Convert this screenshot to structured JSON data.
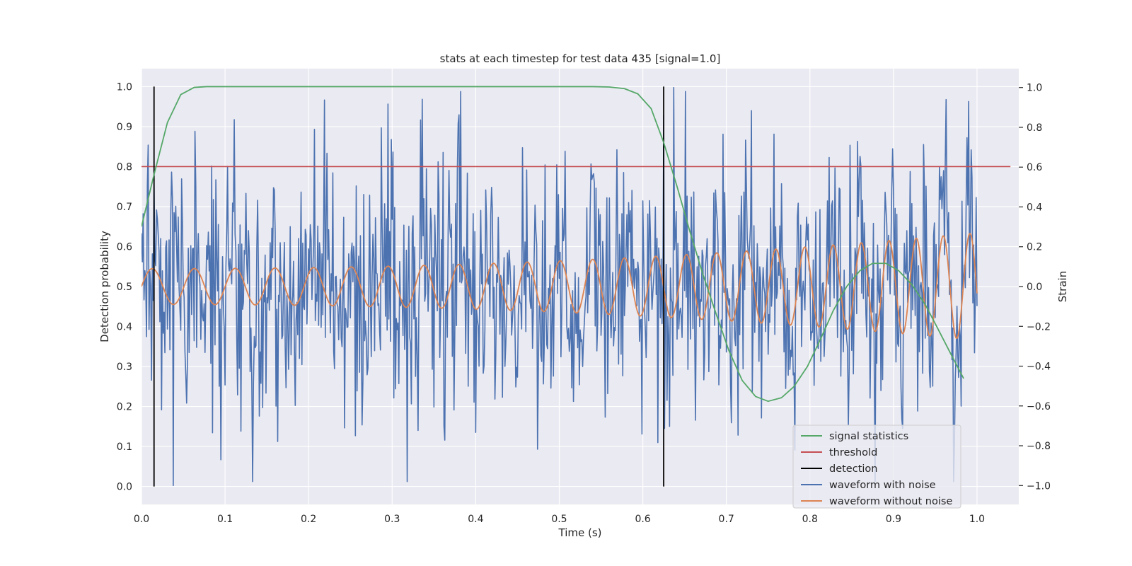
{
  "chart_data": {
    "type": "line",
    "title": "stats at each timestep for test data 435 [signal=1.0]",
    "xlabel": "Time (s)",
    "ylabel": "Detection probability",
    "ylabel_right": "Strain",
    "xlim": [
      0.0,
      1.05
    ],
    "ylim": [
      -0.045,
      1.045
    ],
    "ylim_right": [
      -1.095,
      1.095
    ],
    "x_ticks": [
      "0.0",
      "0.1",
      "0.2",
      "0.3",
      "0.4",
      "0.5",
      "0.6",
      "0.7",
      "0.8",
      "0.9",
      "1.0"
    ],
    "y_ticks": [
      "0.0",
      "0.1",
      "0.2",
      "0.3",
      "0.4",
      "0.5",
      "0.6",
      "0.7",
      "0.8",
      "0.9",
      "1.0"
    ],
    "y_ticks_right": [
      "−1.0",
      "−0.8",
      "−0.6",
      "−0.4",
      "−0.2",
      "0.0",
      "0.2",
      "0.4",
      "0.6",
      "0.8",
      "1.0"
    ],
    "grid": true,
    "legend_position": "bottom-right",
    "colors": {
      "signal_statistics": "#55a868",
      "threshold": "#c44e52",
      "detection": "#000000",
      "waveform_with_noise": "#4c72b0",
      "waveform_without_noise": "#dd8452",
      "plot_background": "#eaeaf2",
      "grid": "#ffffff"
    },
    "series": [
      {
        "name": "signal statistics",
        "axis": "left",
        "x": [
          0.0,
          0.015,
          0.031,
          0.047,
          0.063,
          0.078,
          0.094,
          0.11,
          0.2,
          0.3,
          0.4,
          0.5,
          0.54,
          0.56,
          0.578,
          0.594,
          0.61,
          0.625,
          0.641,
          0.656,
          0.672,
          0.688,
          0.703,
          0.719,
          0.735,
          0.75,
          0.766,
          0.781,
          0.797,
          0.813,
          0.828,
          0.844,
          0.86,
          0.875,
          0.891,
          0.906,
          0.922,
          0.938,
          0.953,
          0.969,
          0.984
        ],
        "values": [
          0.65,
          0.78,
          0.91,
          0.98,
          0.998,
          1.0,
          1.0,
          1.0,
          1.0,
          1.0,
          1.0,
          1.0,
          1.0,
          0.999,
          0.995,
          0.982,
          0.945,
          0.86,
          0.75,
          0.64,
          0.53,
          0.43,
          0.34,
          0.265,
          0.225,
          0.213,
          0.222,
          0.25,
          0.3,
          0.37,
          0.44,
          0.5,
          0.54,
          0.558,
          0.558,
          0.54,
          0.505,
          0.455,
          0.395,
          0.33,
          0.27
        ]
      },
      {
        "name": "threshold",
        "axis": "left",
        "x": [
          0.0,
          1.04
        ],
        "values": [
          0.8,
          0.8
        ]
      },
      {
        "name": "detection",
        "axis": "left",
        "segments": [
          {
            "x": 0.015,
            "y": [
              0.0,
              1.0
            ]
          },
          {
            "x": 0.625,
            "y": [
              0.0,
              1.0
            ]
          }
        ]
      },
      {
        "name": "waveform with noise",
        "axis": "right",
        "x_range": [
          0.0,
          1.0
        ],
        "n_points": 1000,
        "noise_std": 0.31,
        "peaks": [
          {
            "x": 0.038,
            "y": -1.0
          },
          {
            "x": 0.064,
            "y": 0.78
          },
          {
            "x": 0.207,
            "y": 0.79
          },
          {
            "x": 0.625,
            "y": 0.86
          },
          {
            "x": 0.637,
            "y": 1.0
          },
          {
            "x": 0.99,
            "y": 0.93
          }
        ]
      },
      {
        "name": "waveform without noise",
        "axis": "right",
        "x_range": [
          0.0,
          1.0
        ],
        "amplitude_start": 0.09,
        "amplitude_end": 0.27,
        "cycles": 22
      }
    ]
  }
}
